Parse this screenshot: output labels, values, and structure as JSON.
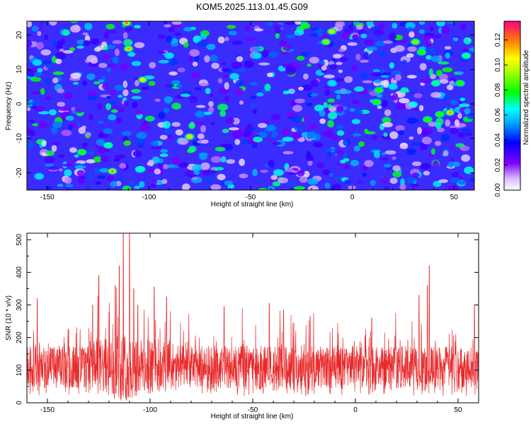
{
  "title": "KOM5.2025.113.01.45.G09",
  "chart_data": [
    {
      "type": "heatmap",
      "xlabel": "Height of straight line (km)",
      "ylabel": "Frequency (Hz)",
      "xlim": [
        -160,
        60
      ],
      "ylim": [
        -25,
        24
      ],
      "xticks": [
        -150,
        -100,
        -50,
        0,
        50
      ],
      "yticks": [
        -20,
        -10,
        0,
        10,
        20
      ],
      "colorbar": {
        "label": "Normalized spectral amplitude",
        "range": [
          0,
          0.135
        ],
        "ticks": [
          0.0,
          0.02,
          0.04,
          0.06,
          0.08,
          0.1,
          0.12
        ],
        "tick_labels": [
          "0.00",
          "0.02",
          "0.04",
          "0.06",
          "0.08",
          "0.10",
          "0.12"
        ],
        "colors": [
          "#ffffff",
          "#8000ff",
          "#0000ff",
          "#00ffff",
          "#00ff00",
          "#ffff00",
          "#ff8000",
          "#ff0080"
        ]
      },
      "background_level": 0.02,
      "hot_spots": [
        {
          "x": -111,
          "y": 23.5,
          "value": 0.13
        },
        {
          "x": -110,
          "y": 16,
          "value": 0.12
        },
        {
          "x": -118,
          "y": -19.5,
          "value": 0.13
        },
        {
          "x": -103,
          "y": 7,
          "value": 0.1
        },
        {
          "x": -80,
          "y": -9.5,
          "value": 0.11
        },
        {
          "x": 48,
          "y": -2.5,
          "value": 0.12
        },
        {
          "x": -10,
          "y": 21,
          "value": 0.1
        },
        {
          "x": -13,
          "y": 18,
          "value": 0.09
        },
        {
          "x": 31,
          "y": 18,
          "value": 0.09
        },
        {
          "x": 34,
          "y": 15,
          "value": 0.08
        },
        {
          "x": 56,
          "y": 14,
          "value": 0.07
        },
        {
          "x": 53,
          "y": 6,
          "value": 0.08
        },
        {
          "x": 41,
          "y": 6,
          "value": 0.07
        },
        {
          "x": 12,
          "y": 0.5,
          "value": 0.08
        },
        {
          "x": 13,
          "y": 4,
          "value": 0.08
        },
        {
          "x": 37,
          "y": -4.5,
          "value": 0.08
        },
        {
          "x": 43,
          "y": -3,
          "value": 0.08
        },
        {
          "x": -133,
          "y": -14,
          "value": 0.08
        },
        {
          "x": -120,
          "y": -12,
          "value": 0.07
        },
        {
          "x": -154,
          "y": -21,
          "value": 0.06
        },
        {
          "x": -155,
          "y": 12,
          "value": 0.06
        },
        {
          "x": -47,
          "y": 14,
          "value": 0.06
        },
        {
          "x": -10,
          "y": 6,
          "value": 0.06
        },
        {
          "x": -20,
          "y": -9,
          "value": 0.05
        },
        {
          "x": -58,
          "y": 8,
          "value": 0.06
        },
        {
          "x": 20,
          "y": 5,
          "value": 0.06
        },
        {
          "x": -90,
          "y": 14,
          "value": 0.06
        },
        {
          "x": -145,
          "y": -6,
          "value": 0.05
        },
        {
          "x": -75,
          "y": -3,
          "value": 0.05
        },
        {
          "x": -40,
          "y": -7,
          "value": 0.05
        }
      ]
    },
    {
      "type": "line",
      "xlabel": "Height of straight line (km)",
      "ylabel": "SNR (10 * v/v)",
      "xlim": [
        -160,
        60
      ],
      "ylim": [
        0,
        520
      ],
      "xticks": [
        -150,
        -100,
        -50,
        0,
        50
      ],
      "yticks": [
        0,
        100,
        200,
        300,
        400,
        500
      ],
      "color": "#e8292b",
      "baseline": 110,
      "peaks": [
        {
          "x": -115,
          "y": 420
        },
        {
          "x": -113,
          "y": 520
        },
        {
          "x": -110,
          "y": 520
        },
        {
          "x": -117,
          "y": 360
        },
        {
          "x": -108,
          "y": 350
        },
        {
          "x": -125,
          "y": 390
        },
        {
          "x": -98,
          "y": 355
        },
        {
          "x": -92,
          "y": 325
        },
        {
          "x": -106,
          "y": 300
        },
        {
          "x": 36,
          "y": 420
        },
        {
          "x": 35,
          "y": 360
        },
        {
          "x": 31,
          "y": 330
        },
        {
          "x": -155,
          "y": 320
        },
        {
          "x": -128,
          "y": 300
        },
        {
          "x": -42,
          "y": 305
        },
        {
          "x": -35,
          "y": 285
        },
        {
          "x": 58,
          "y": 300
        },
        {
          "x": -64,
          "y": 295
        },
        {
          "x": 8,
          "y": 260
        },
        {
          "x": -22,
          "y": 265
        }
      ]
    }
  ]
}
